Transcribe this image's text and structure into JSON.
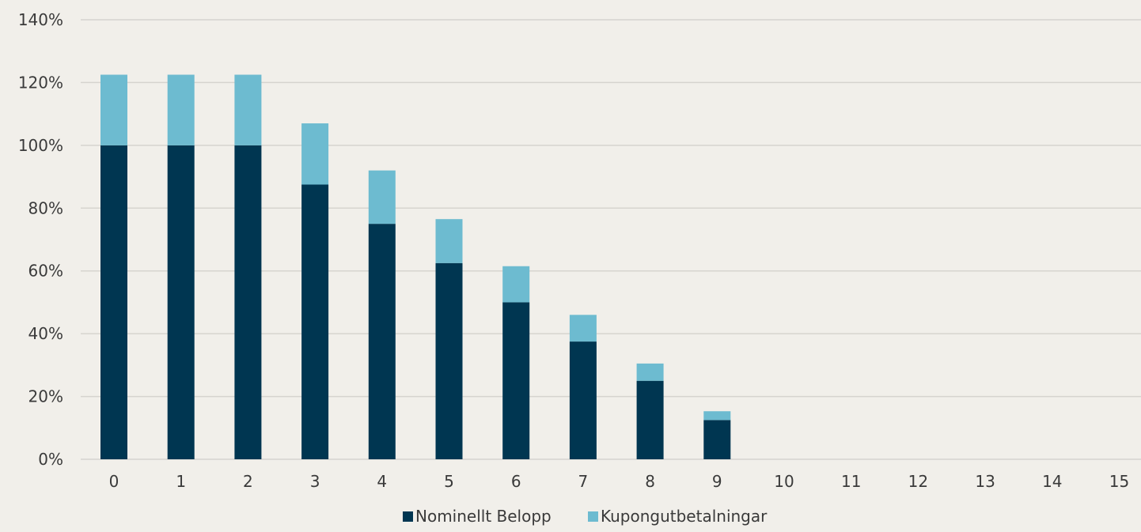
{
  "chart_data": {
    "type": "bar",
    "stacked": true,
    "categories": [
      "0",
      "1",
      "2",
      "3",
      "4",
      "5",
      "6",
      "7",
      "8",
      "9",
      "10",
      "11",
      "12",
      "13",
      "14",
      "15"
    ],
    "series": [
      {
        "name": "Nominellt Belopp",
        "color": "#003651",
        "values": [
          100,
          100,
          100,
          87.5,
          75,
          62.5,
          50,
          37.5,
          25,
          12.5,
          0,
          0,
          0,
          0,
          0,
          0
        ]
      },
      {
        "name": "Kupongutbetalningar",
        "color": "#6dbbd0",
        "values": [
          22.5,
          22.5,
          22.5,
          19.5,
          17,
          14,
          11.5,
          8.5,
          5.5,
          2.8,
          0,
          0,
          0,
          0,
          0,
          0
        ]
      }
    ],
    "y_ticks": [
      "0%",
      "20%",
      "40%",
      "60%",
      "80%",
      "100%",
      "120%",
      "140%"
    ],
    "ylim": [
      0,
      140
    ],
    "grid": true,
    "legend_position": "bottom-center",
    "gridline_color": "#d6d4cf",
    "background": "#f1efea"
  }
}
